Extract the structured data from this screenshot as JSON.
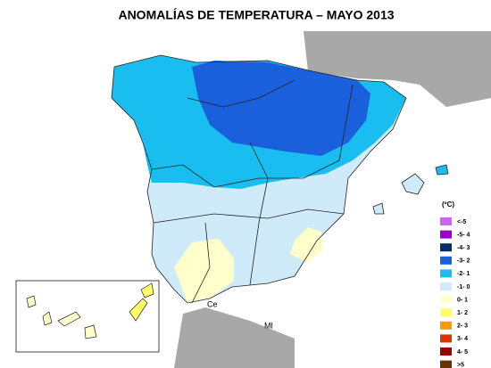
{
  "title": "ANOMALÍAS DE TEMPERATURA – MAYO 2013",
  "legend": {
    "unit": "(ºC)",
    "items": [
      {
        "label": "<-5",
        "color": "#cc66ee"
      },
      {
        "label": "-5- 4",
        "color": "#9900cc"
      },
      {
        "label": "-4- 3",
        "color": "#0a2a6e"
      },
      {
        "label": "-3- 2",
        "color": "#1a5fdc"
      },
      {
        "label": "-2- 1",
        "color": "#19bdef"
      },
      {
        "label": "-1- 0",
        "color": "#cfeaf8"
      },
      {
        "label": "0- 1",
        "color": "#ffffcc"
      },
      {
        "label": "1- 2",
        "color": "#ffff66"
      },
      {
        "label": "2- 3",
        "color": "#ff9900"
      },
      {
        "label": "3- 4",
        "color": "#dd3300"
      },
      {
        "label": "4- 5",
        "color": "#990000"
      },
      {
        "label": ">5",
        "color": "#663300"
      }
    ]
  },
  "map_labels": {
    "ceuta": "Ce",
    "melilla": "Ml"
  }
}
